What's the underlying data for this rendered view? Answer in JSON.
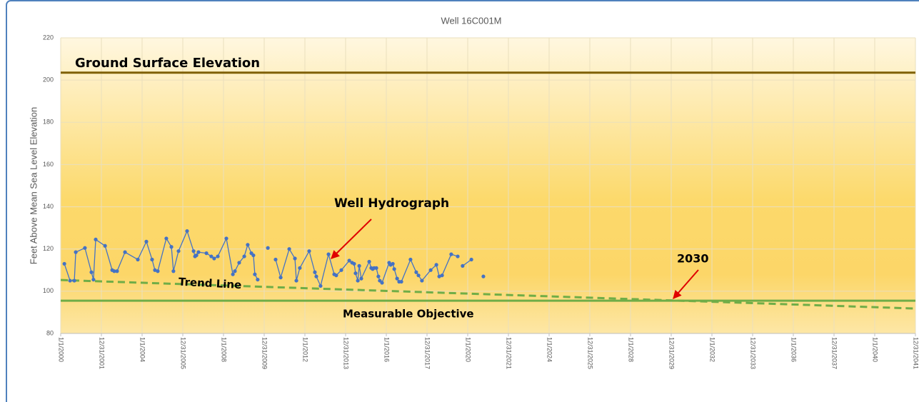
{
  "chart_data": {
    "type": "line",
    "title": "Well 16C001M",
    "y_label": "Feet Above Mean Sea Level Elevation",
    "xlim": [
      2000,
      2042
    ],
    "ylim": [
      80,
      220
    ],
    "yticks": [
      80,
      100,
      120,
      140,
      160,
      180,
      200,
      220
    ],
    "xticks": [
      {
        "value": 2000,
        "label": "1/1/2000"
      },
      {
        "value": 2002,
        "label": "12/31/2001"
      },
      {
        "value": 2004,
        "label": "1/1/2004"
      },
      {
        "value": 2006,
        "label": "12/31/2005"
      },
      {
        "value": 2008,
        "label": "1/1/2008"
      },
      {
        "value": 2010,
        "label": "12/31/2009"
      },
      {
        "value": 2012,
        "label": "1/1/2012"
      },
      {
        "value": 2014,
        "label": "12/31/2013"
      },
      {
        "value": 2016,
        "label": "1/1/2016"
      },
      {
        "value": 2018,
        "label": "12/31/2017"
      },
      {
        "value": 2020,
        "label": "1/1/2020"
      },
      {
        "value": 2022,
        "label": "12/31/2021"
      },
      {
        "value": 2024,
        "label": "1/1/2024"
      },
      {
        "value": 2026,
        "label": "12/31/2025"
      },
      {
        "value": 2028,
        "label": "1/1/2028"
      },
      {
        "value": 2030,
        "label": "12/31/2029"
      },
      {
        "value": 2032,
        "label": "1/1/2032"
      },
      {
        "value": 2034,
        "label": "12/31/2033"
      },
      {
        "value": 2036,
        "label": "1/1/2036"
      },
      {
        "value": 2038,
        "label": "12/31/2037"
      },
      {
        "value": 2040,
        "label": "1/1/2040"
      },
      {
        "value": 2042,
        "label": "12/31/2041"
      }
    ],
    "grid": true,
    "series": [
      {
        "name": "Well Hydrograph",
        "color": "#4472c4",
        "x": [
          2000.18,
          2000.46,
          2000.67,
          2000.74,
          2001.19,
          2001.51,
          2001.61,
          2001.72,
          2002.18,
          2002.53,
          2002.63,
          2002.77,
          2003.16,
          2003.79,
          2004.21,
          2004.49,
          2004.63,
          2004.77,
          2005.19,
          2005.44,
          2005.54,
          2005.79,
          2006.21,
          2006.53,
          2006.6,
          2006.67,
          2006.77,
          2007.16,
          2007.4,
          2007.54,
          2007.72,
          2008.14,
          2008.46,
          2008.56,
          2008.77,
          2009.02,
          2009.19,
          2009.37,
          2009.47,
          2009.54,
          2009.68,
          null,
          2010.18,
          null,
          2010.56,
          2010.81,
          2011.23,
          2011.51,
          2011.58,
          2011.75,
          2012.21,
          2012.49,
          2012.56,
          2012.77,
          2013.16,
          2013.44,
          2013.54,
          2013.79,
          2014.18,
          2014.32,
          2014.42,
          2014.49,
          2014.6,
          2014.67,
          2014.77,
          2015.16,
          2015.26,
          2015.33,
          2015.4,
          2015.51,
          2015.61,
          2015.68,
          2015.79,
          2016.14,
          2016.21,
          2016.32,
          2016.39,
          2016.53,
          2016.63,
          2016.74,
          2017.19,
          2017.47,
          2017.58,
          2017.75,
          2018.18,
          2018.46,
          2018.6,
          2018.74,
          2019.19,
          2019.51,
          null,
          2019.75,
          2020.18,
          null,
          2020.77
        ],
        "values": [
          113,
          105,
          105,
          118.5,
          120.5,
          109,
          105.5,
          124.5,
          121.5,
          110,
          109.5,
          109.5,
          118.5,
          115,
          123.5,
          115,
          110,
          109.5,
          125,
          121,
          109.5,
          119,
          128.5,
          119,
          116.5,
          117,
          118.5,
          118,
          116.5,
          115.5,
          116.5,
          125,
          108,
          109.5,
          113.5,
          116.5,
          122,
          118,
          117,
          108,
          105.5,
          null,
          120.5,
          null,
          115,
          106.5,
          120,
          115.5,
          105,
          111,
          119,
          109,
          107,
          102.5,
          117.5,
          108,
          107.5,
          110,
          114.5,
          113.5,
          113,
          108.5,
          105,
          112,
          106,
          114,
          111,
          110.5,
          111,
          111,
          107,
          105,
          104,
          113.5,
          112.5,
          113,
          110.5,
          106,
          104.5,
          104.5,
          115,
          109,
          107.5,
          105,
          110,
          112.5,
          107,
          107.5,
          117.5,
          116.5,
          null,
          112,
          115,
          null,
          107
        ]
      }
    ],
    "hlines": [
      {
        "label": "Ground Surface Elevation",
        "value": 203.5,
        "color": "#7f6000"
      },
      {
        "label": "Measurable Objective",
        "value": 95.5,
        "color": "#70ad47"
      }
    ],
    "trend": {
      "label": "Trend Line",
      "x": [
        2000,
        2042
      ],
      "values": [
        105.3,
        91.8
      ],
      "color": "#70ad47"
    },
    "annotations": [
      {
        "text": "2030"
      }
    ]
  }
}
